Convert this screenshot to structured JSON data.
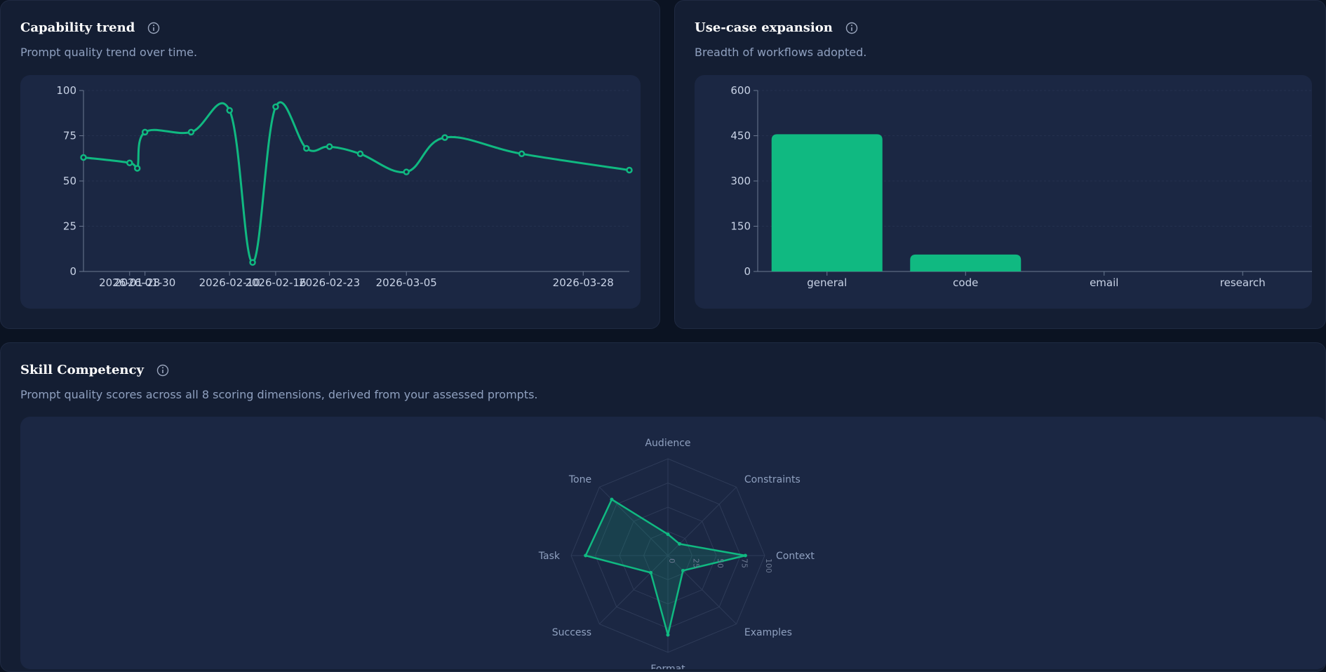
{
  "colors": {
    "accent": "#10b981",
    "background": "#0b1322",
    "card": "#141e33",
    "panel": "#1b2743",
    "axis_text": "#c9d3e6",
    "muted_text": "#8fa0bf"
  },
  "trend": {
    "title": "Capability trend",
    "subtitle": "Prompt quality trend over time.",
    "icon": "info-icon"
  },
  "usecase": {
    "title": "Use-case expansion",
    "subtitle": "Breadth of workflows adopted.",
    "icon": "info-icon"
  },
  "skills": {
    "title": "Skill Competency",
    "subtitle": "Prompt quality scores across all 8 scoring dimensions, derived from your assessed prompts.",
    "icon": "info-icon"
  },
  "chart_data": [
    {
      "type": "line",
      "curve": "smooth",
      "x_range": [
        "2026-01-22",
        "2026-04-03"
      ],
      "x": [
        "2026-01-22",
        "2026-01-28",
        "2026-01-29",
        "2026-01-30",
        "2026-02-05",
        "2026-02-10",
        "2026-02-13",
        "2026-02-16",
        "2026-02-20",
        "2026-02-23",
        "2026-02-27",
        "2026-03-05",
        "2026-03-10",
        "2026-03-20",
        "2026-04-03"
      ],
      "values": [
        63,
        60,
        57,
        77,
        77,
        89,
        5,
        91,
        68,
        69,
        65,
        55,
        74,
        65,
        56
      ],
      "xticks": [
        "2026-01-28",
        "2026-01-30",
        "2026-02-10",
        "2026-02-16",
        "2026-02-23",
        "2026-03-05",
        "2026-03-28"
      ],
      "ylim": [
        0,
        100
      ],
      "yticks": [
        0,
        25,
        50,
        75,
        100
      ],
      "grid": true
    },
    {
      "type": "bar",
      "categories": [
        "general",
        "code",
        "email",
        "research"
      ],
      "values": [
        455,
        56,
        0,
        0
      ],
      "ylim": [
        0,
        600
      ],
      "yticks": [
        0,
        150,
        300,
        450,
        600
      ],
      "grid": true
    },
    {
      "type": "radar",
      "axes": [
        "Audience",
        "Constraints",
        "Context",
        "Examples",
        "Format",
        "Success",
        "Task",
        "Tone"
      ],
      "values": [
        22,
        17,
        80,
        22,
        82,
        25,
        85,
        82
      ],
      "rlim": [
        0,
        100
      ],
      "rticks": [
        0,
        25,
        50,
        75,
        100
      ]
    }
  ]
}
